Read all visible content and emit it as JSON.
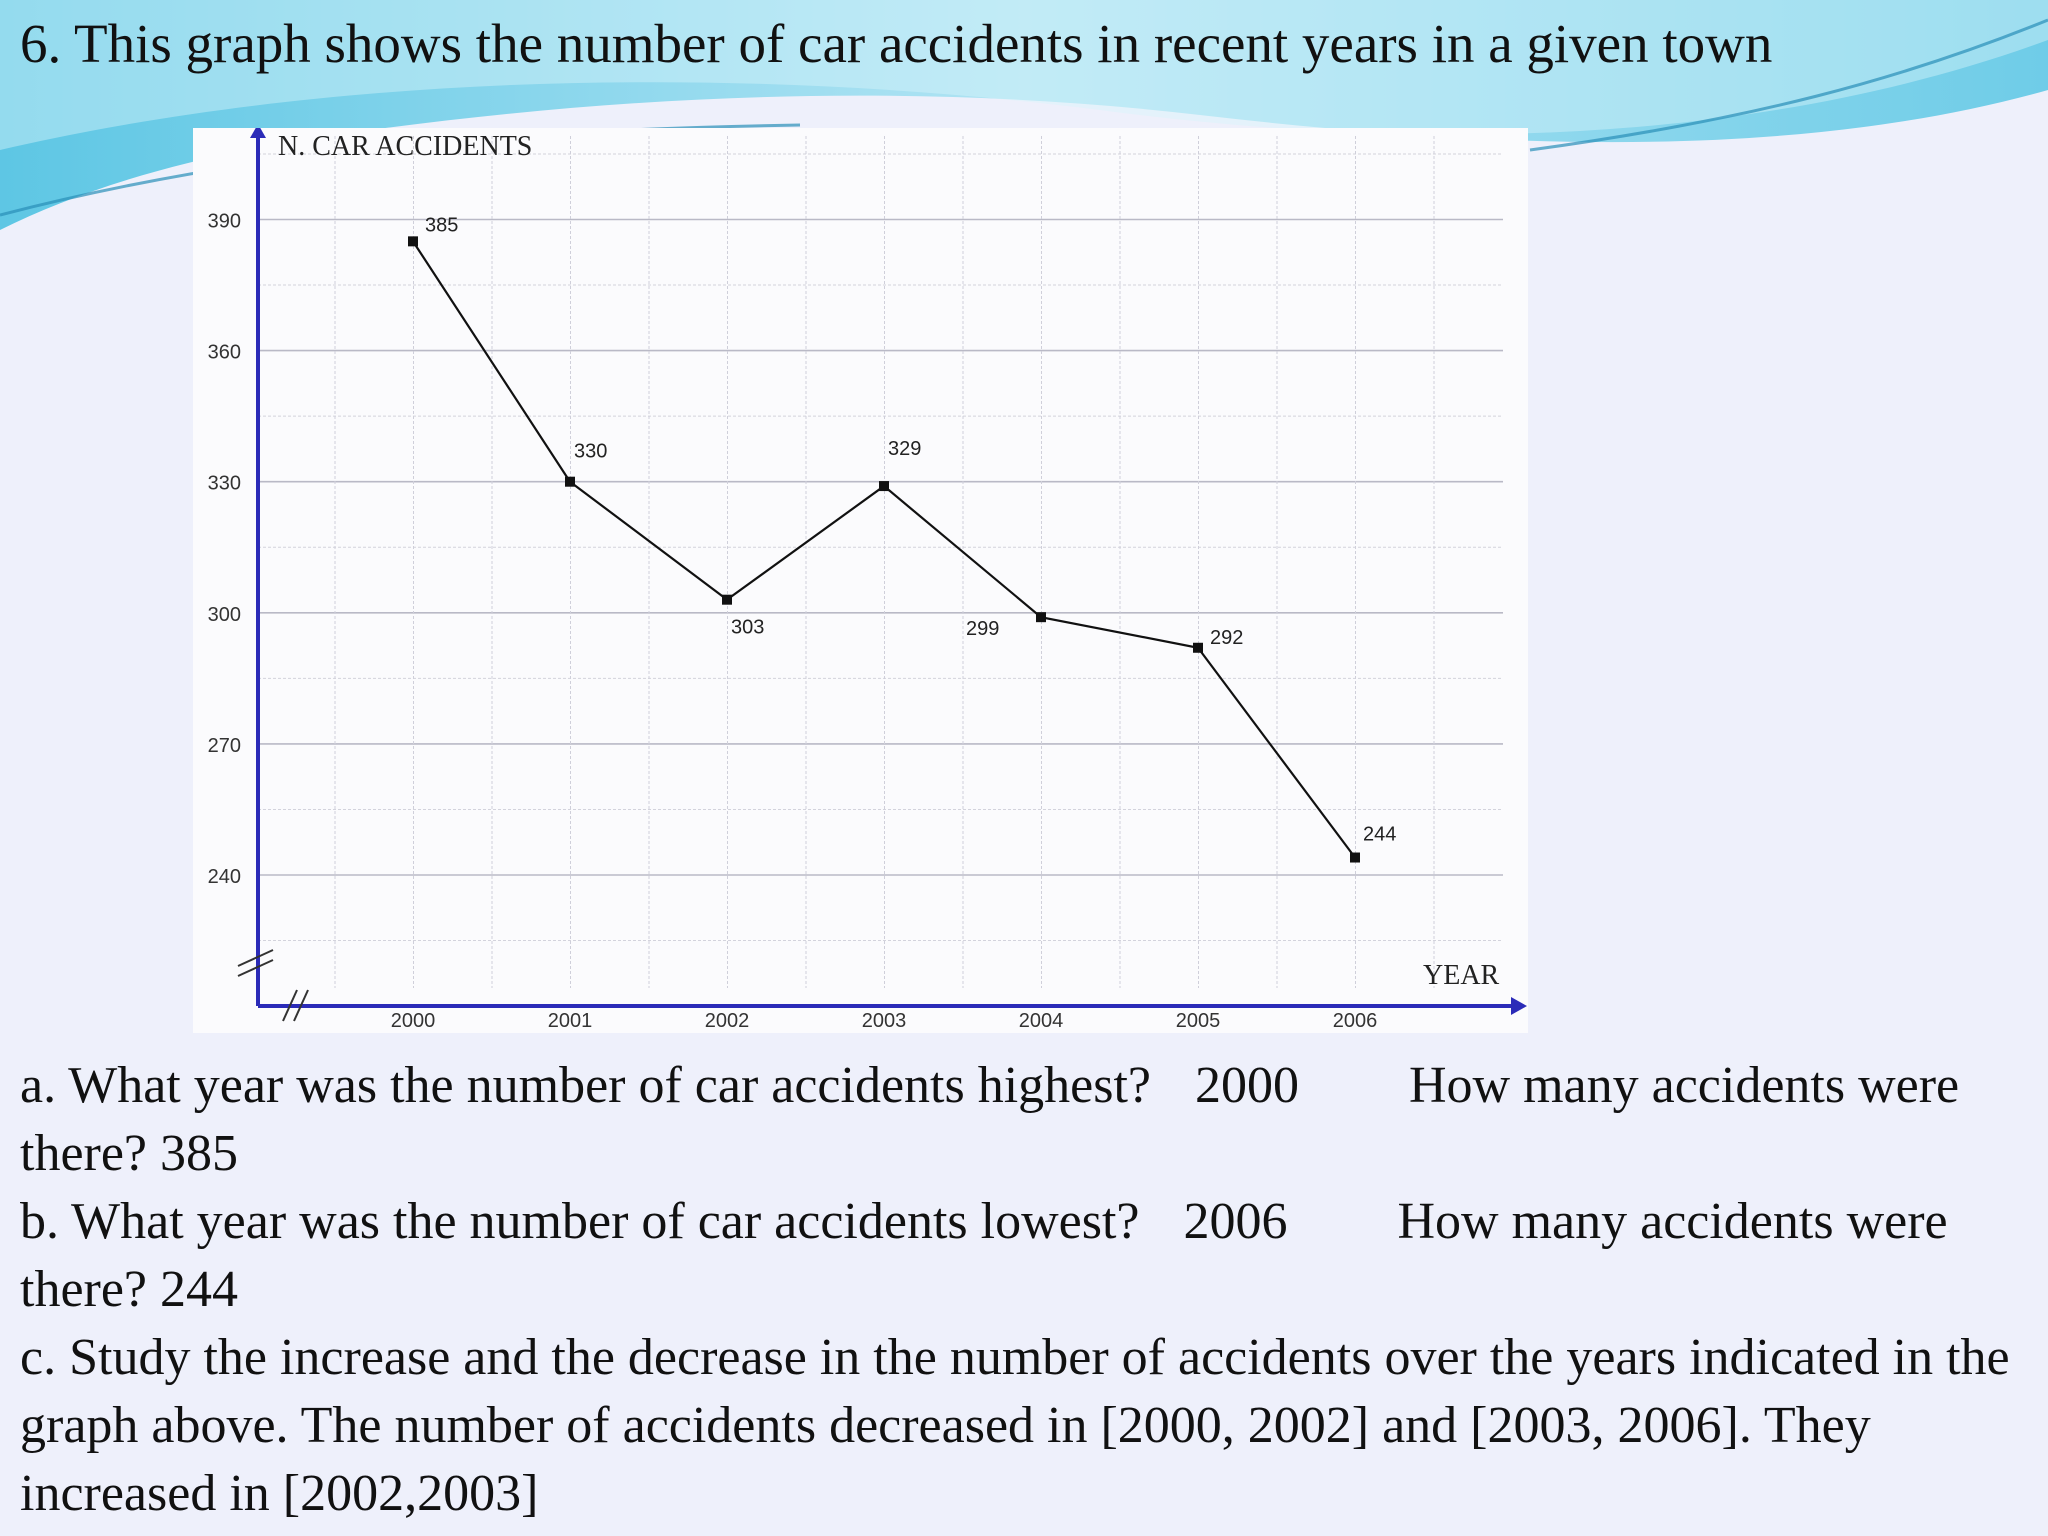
{
  "page": {
    "title": "6. This graph shows the number of car accidents in recent years in a given town"
  },
  "chart_data": {
    "type": "line",
    "title": "",
    "ylabel": "N. CAR ACCIDENTS",
    "xlabel": "YEAR",
    "categories": [
      "2000",
      "2001",
      "2002",
      "2003",
      "2004",
      "2005",
      "2006"
    ],
    "values": [
      385,
      330,
      303,
      329,
      299,
      292,
      244
    ],
    "data_labels": [
      "385",
      "330",
      "303",
      "329",
      "299",
      "292",
      "244"
    ],
    "yticks": [
      240,
      270,
      300,
      330,
      360,
      390
    ],
    "ylim": [
      213,
      405
    ],
    "grid": true,
    "axis_break": "y and x axes (//)"
  },
  "questions": {
    "a": {
      "text": "a. What year was the number of car accidents highest?",
      "answer_year": "2000",
      "follow": "How many accidents were there? 385"
    },
    "b": {
      "text": "b. What year was the number of car accidents lowest?",
      "answer_year": "2006",
      "follow": "How many accidents were there? 244"
    },
    "c": {
      "text": "c. Study the increase and the decrease in the number of accidents over the years indicated in the graph above. The number of accidents decreased in [2000, 2002] and [2003, 2006]. They increased in [2002,2003]"
    }
  },
  "colors": {
    "axis": "#2b2bb8",
    "line": "#111111",
    "wave_dark": "#3fb6d8",
    "wave_light": "#bfe9f4"
  }
}
